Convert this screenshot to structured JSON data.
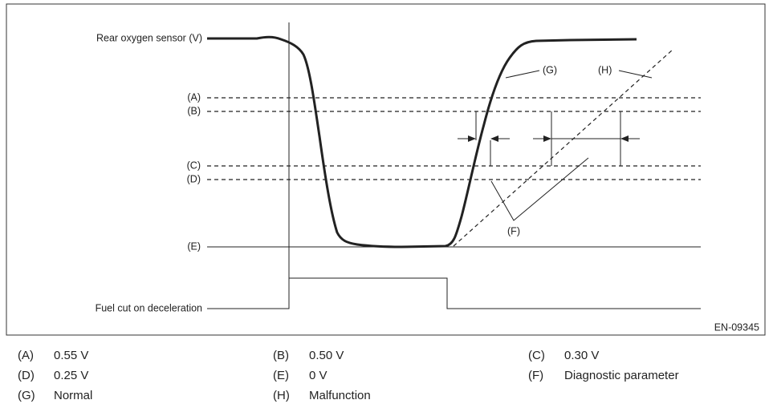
{
  "diagram": {
    "sensor_label": "Rear oxygen sensor (V)",
    "levels": [
      "(A)",
      "(B)",
      "(C)",
      "(D)",
      "(E)"
    ],
    "fuel_cut_label": "Fuel cut on deceleration",
    "normal_label": "(G)",
    "malfunction_label": "(H)",
    "parameter_label": "(F)",
    "figure_id": "EN-09345"
  },
  "legend": [
    {
      "key": "(A)",
      "text": "0.55 V"
    },
    {
      "key": "(B)",
      "text": "0.50 V"
    },
    {
      "key": "(C)",
      "text": "0.30 V"
    },
    {
      "key": "(D)",
      "text": "0.25 V"
    },
    {
      "key": "(E)",
      "text": "0 V"
    },
    {
      "key": "(F)",
      "text": "Diagnostic parameter"
    },
    {
      "key": "(G)",
      "text": "Normal"
    },
    {
      "key": "(H)",
      "text": "Malfunction"
    }
  ]
}
